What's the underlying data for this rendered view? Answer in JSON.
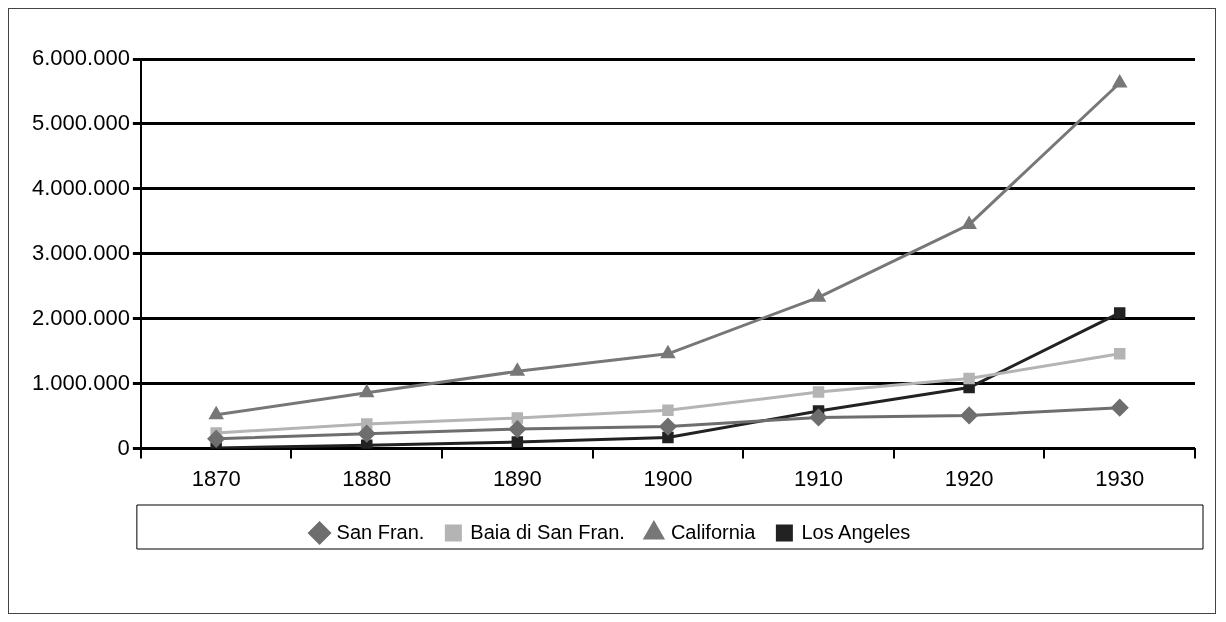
{
  "chart_data": {
    "type": "line",
    "categories": [
      "1870",
      "1880",
      "1890",
      "1900",
      "1910",
      "1920",
      "1930"
    ],
    "series": [
      {
        "name": "San Fran.",
        "color": "#6e6e6e",
        "marker": "diamond",
        "values": [
          150000,
          230000,
          300000,
          340000,
          480000,
          510000,
          630000
        ]
      },
      {
        "name": "Baia di San Fran.",
        "color": "#b4b4b4",
        "marker": "square",
        "values": [
          240000,
          380000,
          470000,
          590000,
          870000,
          1080000,
          1460000
        ]
      },
      {
        "name": "California",
        "color": "#777777",
        "marker": "triangle",
        "values": [
          520000,
          860000,
          1190000,
          1460000,
          2330000,
          3450000,
          5630000
        ]
      },
      {
        "name": "Los Angeles",
        "color": "#222222",
        "marker": "square",
        "values": [
          10000,
          50000,
          100000,
          170000,
          580000,
          940000,
          2090000
        ]
      }
    ],
    "ylim": [
      0,
      6000000
    ],
    "yticks": [
      {
        "value": 0,
        "label": "0"
      },
      {
        "value": 1000000,
        "label": "1.000.000"
      },
      {
        "value": 2000000,
        "label": "2.000.000"
      },
      {
        "value": 3000000,
        "label": "3.000.000"
      },
      {
        "value": 4000000,
        "label": "4.000.000"
      },
      {
        "value": 5000000,
        "label": "5.000.000"
      },
      {
        "value": 6000000,
        "label": "6.000.000"
      }
    ],
    "grid": "y",
    "legend": "bottom",
    "line_style": "solid"
  }
}
